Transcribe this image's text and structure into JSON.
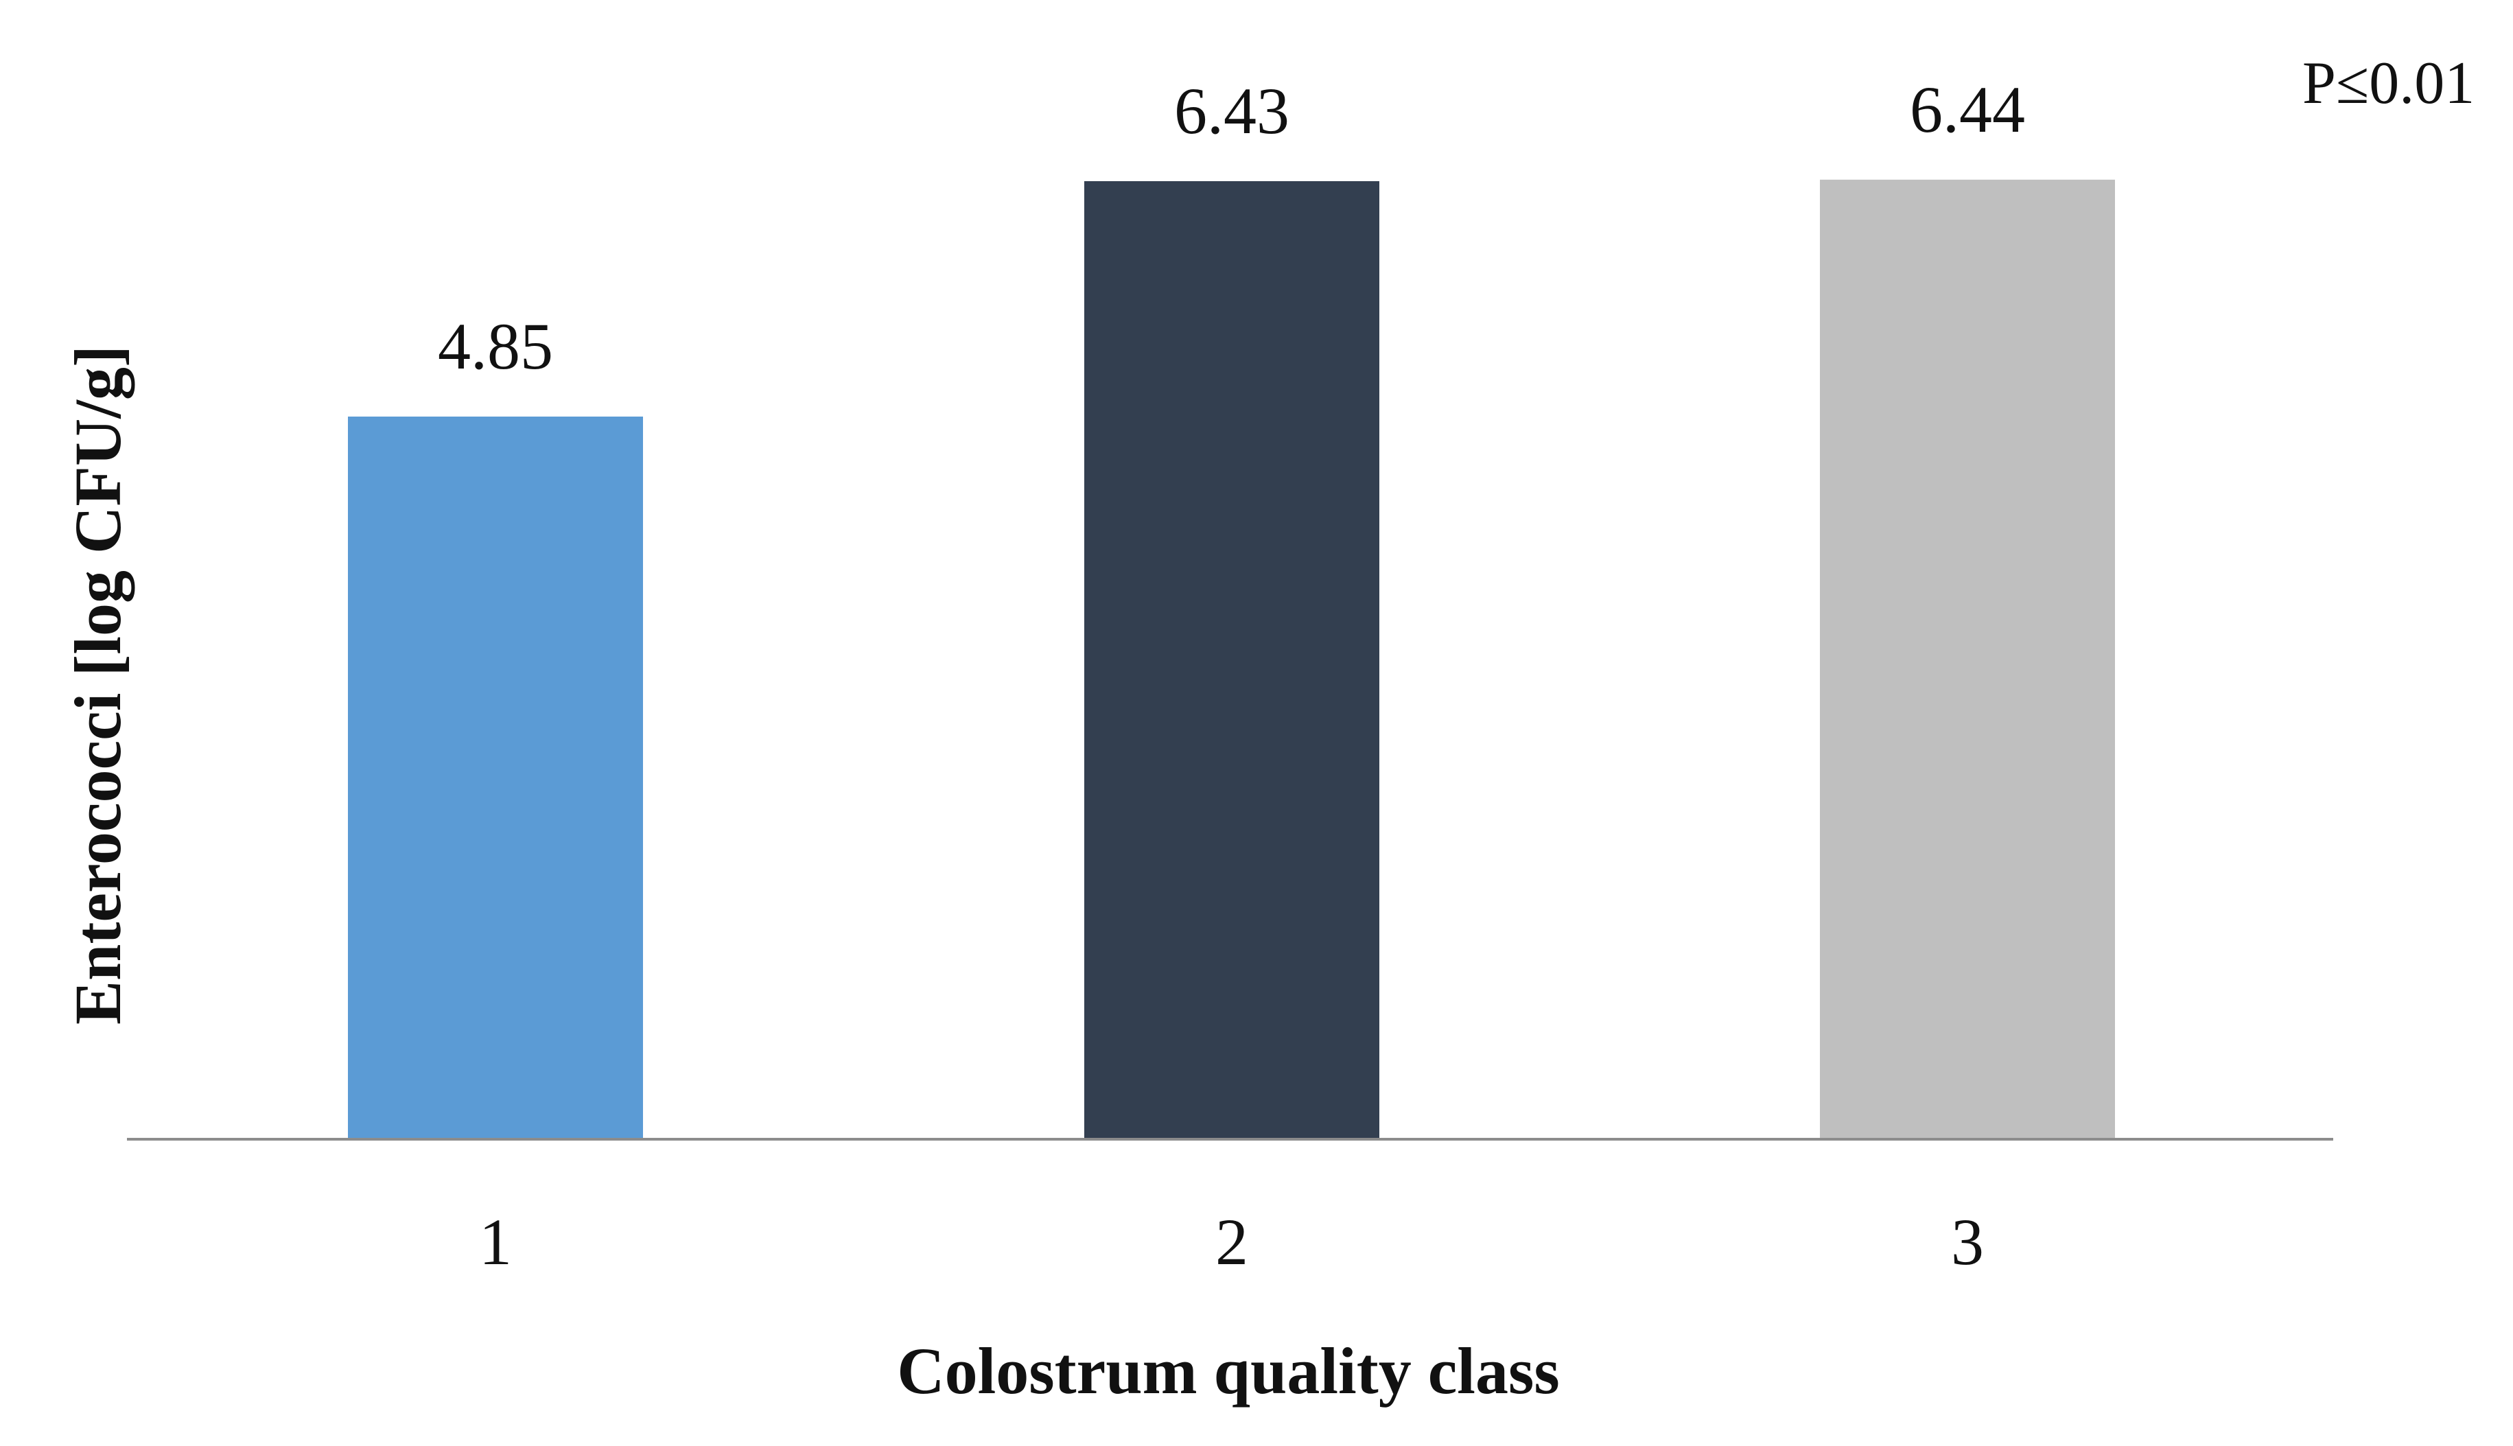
{
  "chart_data": {
    "type": "bar",
    "title": "",
    "xlabel": "Colostrum quality class",
    "ylabel": "Enterococci [log CFU/g]",
    "categories": [
      "1",
      "2",
      "3"
    ],
    "values": [
      4.85,
      6.43,
      6.44
    ],
    "data_labels": [
      "4.85",
      "6.43",
      "6.44"
    ],
    "colors": [
      "#5b9bd5",
      "#333f50",
      "#bfbfbf"
    ],
    "annotation": "P≤0.01",
    "ylim": [
      0,
      7.6
    ],
    "grid": false,
    "legend": "none"
  }
}
